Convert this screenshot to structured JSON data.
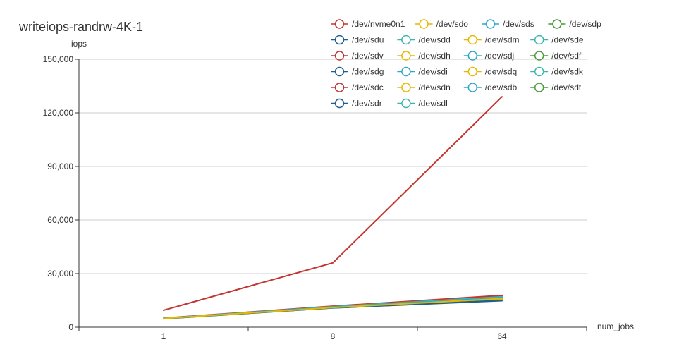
{
  "chart_data": {
    "type": "line",
    "title": "writeiops-randrw-4K-1",
    "ylabel": "iops",
    "xlabel": "num_jobs",
    "categories": [
      "1",
      "8",
      "64"
    ],
    "ylim": [
      0,
      150000
    ],
    "yticks": [
      0,
      30000,
      60000,
      90000,
      120000,
      150000
    ],
    "ytick_labels": [
      "0",
      "30,000",
      "60,000",
      "90,000",
      "120,000",
      "150,000"
    ],
    "grid": true,
    "legend_position": "top-right",
    "series": [
      {
        "name": "/dev/nvme0n1",
        "color": "#c23531",
        "values": [
          9500,
          36000,
          129000
        ]
      },
      {
        "name": "/dev/sdo",
        "color": "#e6b800",
        "values": [
          4900,
          11000,
          16000
        ]
      },
      {
        "name": "/dev/sds",
        "color": "#2ea7c9",
        "values": [
          4900,
          11300,
          16500
        ]
      },
      {
        "name": "/dev/sdp",
        "color": "#4a9a3a",
        "values": [
          4800,
          11000,
          16000
        ]
      },
      {
        "name": "/dev/sdu",
        "color": "#1f5f8f",
        "values": [
          4800,
          10800,
          15000
        ]
      },
      {
        "name": "/dev/sdd",
        "color": "#3fb5b0",
        "values": [
          4900,
          11200,
          16800
        ]
      },
      {
        "name": "/dev/sdm",
        "color": "#e6b800",
        "values": [
          4700,
          10900,
          15500
        ]
      },
      {
        "name": "/dev/sde",
        "color": "#3fb5b0",
        "values": [
          5000,
          11500,
          17000
        ]
      },
      {
        "name": "/dev/sdv",
        "color": "#c23531",
        "values": [
          5100,
          11800,
          17800
        ]
      },
      {
        "name": "/dev/sdh",
        "color": "#e6b800",
        "values": [
          4800,
          11000,
          15800
        ]
      },
      {
        "name": "/dev/sdj",
        "color": "#2ea7c9",
        "values": [
          4900,
          11200,
          16300
        ]
      },
      {
        "name": "/dev/sdf",
        "color": "#4a9a3a",
        "values": [
          4800,
          11100,
          16100
        ]
      },
      {
        "name": "/dev/sdg",
        "color": "#1f5f8f",
        "values": [
          4700,
          10800,
          14800
        ]
      },
      {
        "name": "/dev/sdi",
        "color": "#2ea7c9",
        "values": [
          4900,
          11100,
          16200
        ]
      },
      {
        "name": "/dev/sdq",
        "color": "#e6b800",
        "values": [
          4800,
          11000,
          15900
        ]
      },
      {
        "name": "/dev/sdk",
        "color": "#3fb5b0",
        "values": [
          5000,
          11400,
          16900
        ]
      },
      {
        "name": "/dev/sdc",
        "color": "#c23531",
        "values": [
          5000,
          11600,
          17500
        ]
      },
      {
        "name": "/dev/sdn",
        "color": "#e6b800",
        "values": [
          4800,
          10900,
          15600
        ]
      },
      {
        "name": "/dev/sdb",
        "color": "#2ea7c9",
        "values": [
          4900,
          11200,
          16400
        ]
      },
      {
        "name": "/dev/sdt",
        "color": "#4a9a3a",
        "values": [
          4900,
          11100,
          16200
        ]
      },
      {
        "name": "/dev/sdr",
        "color": "#1f5f8f",
        "values": [
          4800,
          10900,
          15200
        ]
      },
      {
        "name": "/dev/sdl",
        "color": "#3fb5b0",
        "values": [
          4900,
          11300,
          16600
        ]
      }
    ]
  }
}
